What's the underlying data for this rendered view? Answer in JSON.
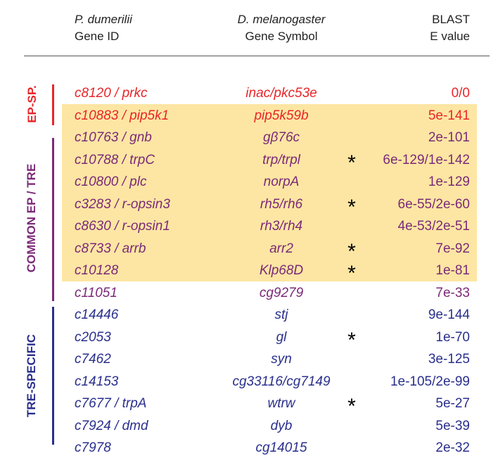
{
  "header": {
    "col1_line1": "P. dumerilii",
    "col1_line2": "Gene ID",
    "col2_line1": "D. melanogaster",
    "col2_line2": "Gene Symbol",
    "col3_line1": "BLAST",
    "col3_line2": "E value"
  },
  "groups": [
    {
      "label": "EP-SP.",
      "color": "#e8262a"
    },
    {
      "label": "COMMON EP / TRE",
      "color": "#7b2a78"
    },
    {
      "label": "TRE-SPECIFIC",
      "color": "#2a2f8c"
    }
  ],
  "colors": {
    "red": "#e8262a",
    "purple": "#7b2a78",
    "blue": "#2a2f8c",
    "highlight": "#fde6a3"
  },
  "rows": [
    {
      "gene": "c8120 / prkc",
      "symbol": "inac/pkc53e",
      "star": "",
      "evalue": "0/0",
      "color": "#e8262a"
    },
    {
      "gene": "c10883 / pip5k1",
      "symbol": "pip5k59b",
      "star": "",
      "evalue": "5e-141",
      "color": "#e8262a"
    },
    {
      "gene": "c10763 / gnb",
      "symbol": "gβ76c",
      "star": "",
      "evalue": "2e-101",
      "color": "#7b2a78"
    },
    {
      "gene": "c10788 / trpC",
      "symbol": "trp/trpl",
      "star": "*",
      "evalue": "6e-129/1e-142",
      "color": "#7b2a78"
    },
    {
      "gene": "c10800 / plc",
      "symbol": "norpA",
      "star": "",
      "evalue": "1e-129",
      "color": "#7b2a78"
    },
    {
      "gene": "c3283 / r-opsin3",
      "symbol": "rh5/rh6",
      "star": "*",
      "evalue": "6e-55/2e-60",
      "color": "#7b2a78"
    },
    {
      "gene": "c8630 / r-opsin1",
      "symbol": "rh3/rh4",
      "star": "",
      "evalue": "4e-53/2e-51",
      "color": "#7b2a78"
    },
    {
      "gene": "c8733 / arrb",
      "symbol": "arr2",
      "star": "*",
      "evalue": "7e-92",
      "color": "#7b2a78"
    },
    {
      "gene": "c10128",
      "symbol": "Klp68D",
      "star": "*",
      "evalue": "1e-81",
      "color": "#7b2a78"
    },
    {
      "gene": "c11051",
      "symbol": "cg9279",
      "star": "",
      "evalue": "7e-33",
      "color": "#7b2a78"
    },
    {
      "gene": "c14446",
      "symbol": "stj",
      "star": "",
      "evalue": "9e-144",
      "color": "#2a2f8c"
    },
    {
      "gene": "c2053",
      "symbol": "gl",
      "star": "*",
      "evalue": "1e-70",
      "color": "#2a2f8c"
    },
    {
      "gene": "c7462",
      "symbol": "syn",
      "star": "",
      "evalue": "3e-125",
      "color": "#2a2f8c"
    },
    {
      "gene": "c14153",
      "symbol": "cg33116/cg7149",
      "star": "",
      "evalue": "1e-105/2e-99",
      "color": "#2a2f8c"
    },
    {
      "gene": "c7677 / trpA",
      "symbol": "wtrw",
      "star": "*",
      "evalue": "5e-27",
      "color": "#2a2f8c"
    },
    {
      "gene": "c7924 / dmd",
      "symbol": "dyb",
      "star": "",
      "evalue": "5e-39",
      "color": "#2a2f8c"
    },
    {
      "gene": "c7978",
      "symbol": "cg14015",
      "star": "",
      "evalue": "2e-32",
      "color": "#2a2f8c"
    }
  ]
}
